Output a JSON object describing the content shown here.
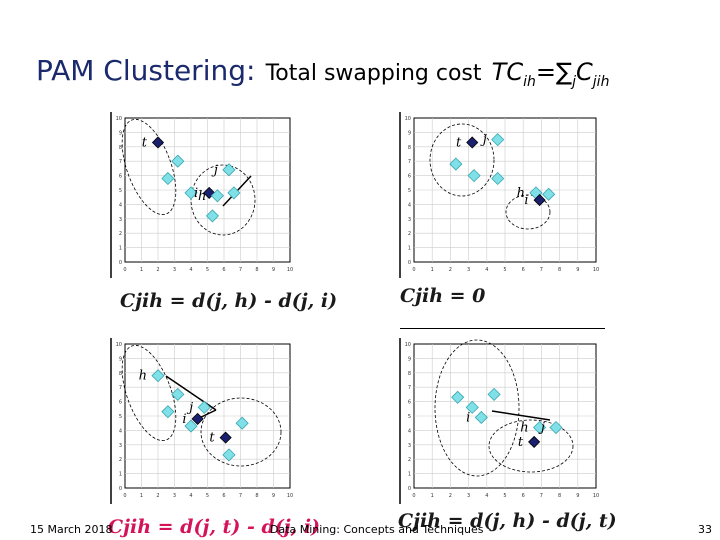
{
  "title": {
    "main": "PAM Clustering:",
    "sub": "Total swapping cost",
    "formula_lead": "TC",
    "formula_lead_sub": "ih",
    "formula_eq": "=∑",
    "formula_sum_sub": "j",
    "formula_c": "C",
    "formula_c_sub": "jih"
  },
  "panels": [
    {
      "formula": "Cjih = d(j, h) - d(j, i)",
      "y_ticks": [
        "10",
        "9",
        "8",
        "7",
        "6",
        "5",
        "4",
        "3",
        "2",
        "1",
        "0"
      ],
      "x_ticks": [
        "0",
        "1",
        "2",
        "3",
        "4",
        "5",
        "6",
        "7",
        "8",
        "9",
        "10"
      ],
      "points": [
        {
          "label": "t",
          "type": "medoid",
          "x": 2.0,
          "y": 8.3
        },
        {
          "label": "",
          "type": "point",
          "x": 3.2,
          "y": 7.0
        },
        {
          "label": "",
          "type": "point",
          "x": 2.6,
          "y": 5.8
        },
        {
          "label": "",
          "type": "point",
          "x": 4.0,
          "y": 4.8
        },
        {
          "label": "j",
          "type": "point",
          "x": 6.3,
          "y": 6.4
        },
        {
          "label": "i",
          "type": "medoid",
          "x": 5.1,
          "y": 4.8
        },
        {
          "label": "h",
          "type": "point",
          "x": 5.6,
          "y": 4.6
        },
        {
          "label": "",
          "type": "point",
          "x": 6.6,
          "y": 4.8
        },
        {
          "label": "",
          "type": "point",
          "x": 5.3,
          "y": 3.2
        }
      ]
    },
    {
      "formula": "Cjih = 0",
      "y_ticks": [
        "10",
        "9",
        "8",
        "7",
        "6",
        "5",
        "4",
        "3",
        "2",
        "1",
        "0"
      ],
      "x_ticks": [
        "0",
        "1",
        "2",
        "3",
        "4",
        "5",
        "6",
        "7",
        "8",
        "9",
        "10"
      ],
      "points": [
        {
          "label": "t",
          "type": "medoid",
          "x": 3.2,
          "y": 8.3
        },
        {
          "label": "j",
          "type": "point",
          "x": 4.6,
          "y": 8.5
        },
        {
          "label": "",
          "type": "point",
          "x": 2.3,
          "y": 6.8
        },
        {
          "label": "",
          "type": "point",
          "x": 3.3,
          "y": 6.0
        },
        {
          "label": "",
          "type": "point",
          "x": 4.6,
          "y": 5.8
        },
        {
          "label": "h",
          "type": "point",
          "x": 6.7,
          "y": 4.8
        },
        {
          "label": "i",
          "type": "medoid",
          "x": 6.9,
          "y": 4.3
        },
        {
          "label": "",
          "type": "point",
          "x": 7.4,
          "y": 4.7
        }
      ]
    },
    {
      "formula": "Cjih = d(j, t) - d(j, i)",
      "y_ticks": [
        "10",
        "9",
        "8",
        "7",
        "6",
        "5",
        "4",
        "3",
        "2",
        "1",
        "0"
      ],
      "x_ticks": [
        "0",
        "1",
        "2",
        "3",
        "4",
        "5",
        "6",
        "7",
        "8",
        "9",
        "10"
      ],
      "points": [
        {
          "label": "h",
          "type": "point",
          "x": 2.0,
          "y": 7.8
        },
        {
          "label": "",
          "type": "point",
          "x": 3.2,
          "y": 6.5
        },
        {
          "label": "",
          "type": "point",
          "x": 2.6,
          "y": 5.3
        },
        {
          "label": "j",
          "type": "point",
          "x": 4.8,
          "y": 5.6
        },
        {
          "label": "",
          "type": "point",
          "x": 4.0,
          "y": 4.3
        },
        {
          "label": "i",
          "type": "medoid",
          "x": 4.4,
          "y": 4.8
        },
        {
          "label": "t",
          "type": "medoid",
          "x": 6.1,
          "y": 3.5
        },
        {
          "label": "",
          "type": "point",
          "x": 7.1,
          "y": 4.5
        },
        {
          "label": "",
          "type": "point",
          "x": 6.3,
          "y": 2.3
        }
      ]
    },
    {
      "formula": "Cjih = d(j, h) - d(j, t)",
      "y_ticks": [
        "10",
        "9",
        "8",
        "7",
        "6",
        "5",
        "4",
        "3",
        "2",
        "1",
        "0"
      ],
      "x_ticks": [
        "0",
        "1",
        "2",
        "3",
        "4",
        "5",
        "6",
        "7",
        "8",
        "9",
        "10"
      ],
      "points": [
        {
          "label": "",
          "type": "point",
          "x": 2.4,
          "y": 6.3
        },
        {
          "label": "",
          "type": "point",
          "x": 3.2,
          "y": 5.6
        },
        {
          "label": "",
          "type": "point",
          "x": 4.4,
          "y": 6.5
        },
        {
          "label": "i",
          "type": "point",
          "x": 3.7,
          "y": 4.9
        },
        {
          "label": "h",
          "type": "point",
          "x": 6.9,
          "y": 4.2
        },
        {
          "label": "j",
          "type": "point",
          "x": 7.8,
          "y": 4.2
        },
        {
          "label": "t",
          "type": "medoid",
          "x": 6.6,
          "y": 3.2
        }
      ]
    }
  ],
  "footer": {
    "date": "15 March 2018",
    "center": "Data Mining: Concepts and Techniques",
    "page": "33"
  },
  "colors": {
    "point": "#7fe0e8",
    "medoid": "#1a1f6e",
    "formula_accent": "#d4145a"
  }
}
